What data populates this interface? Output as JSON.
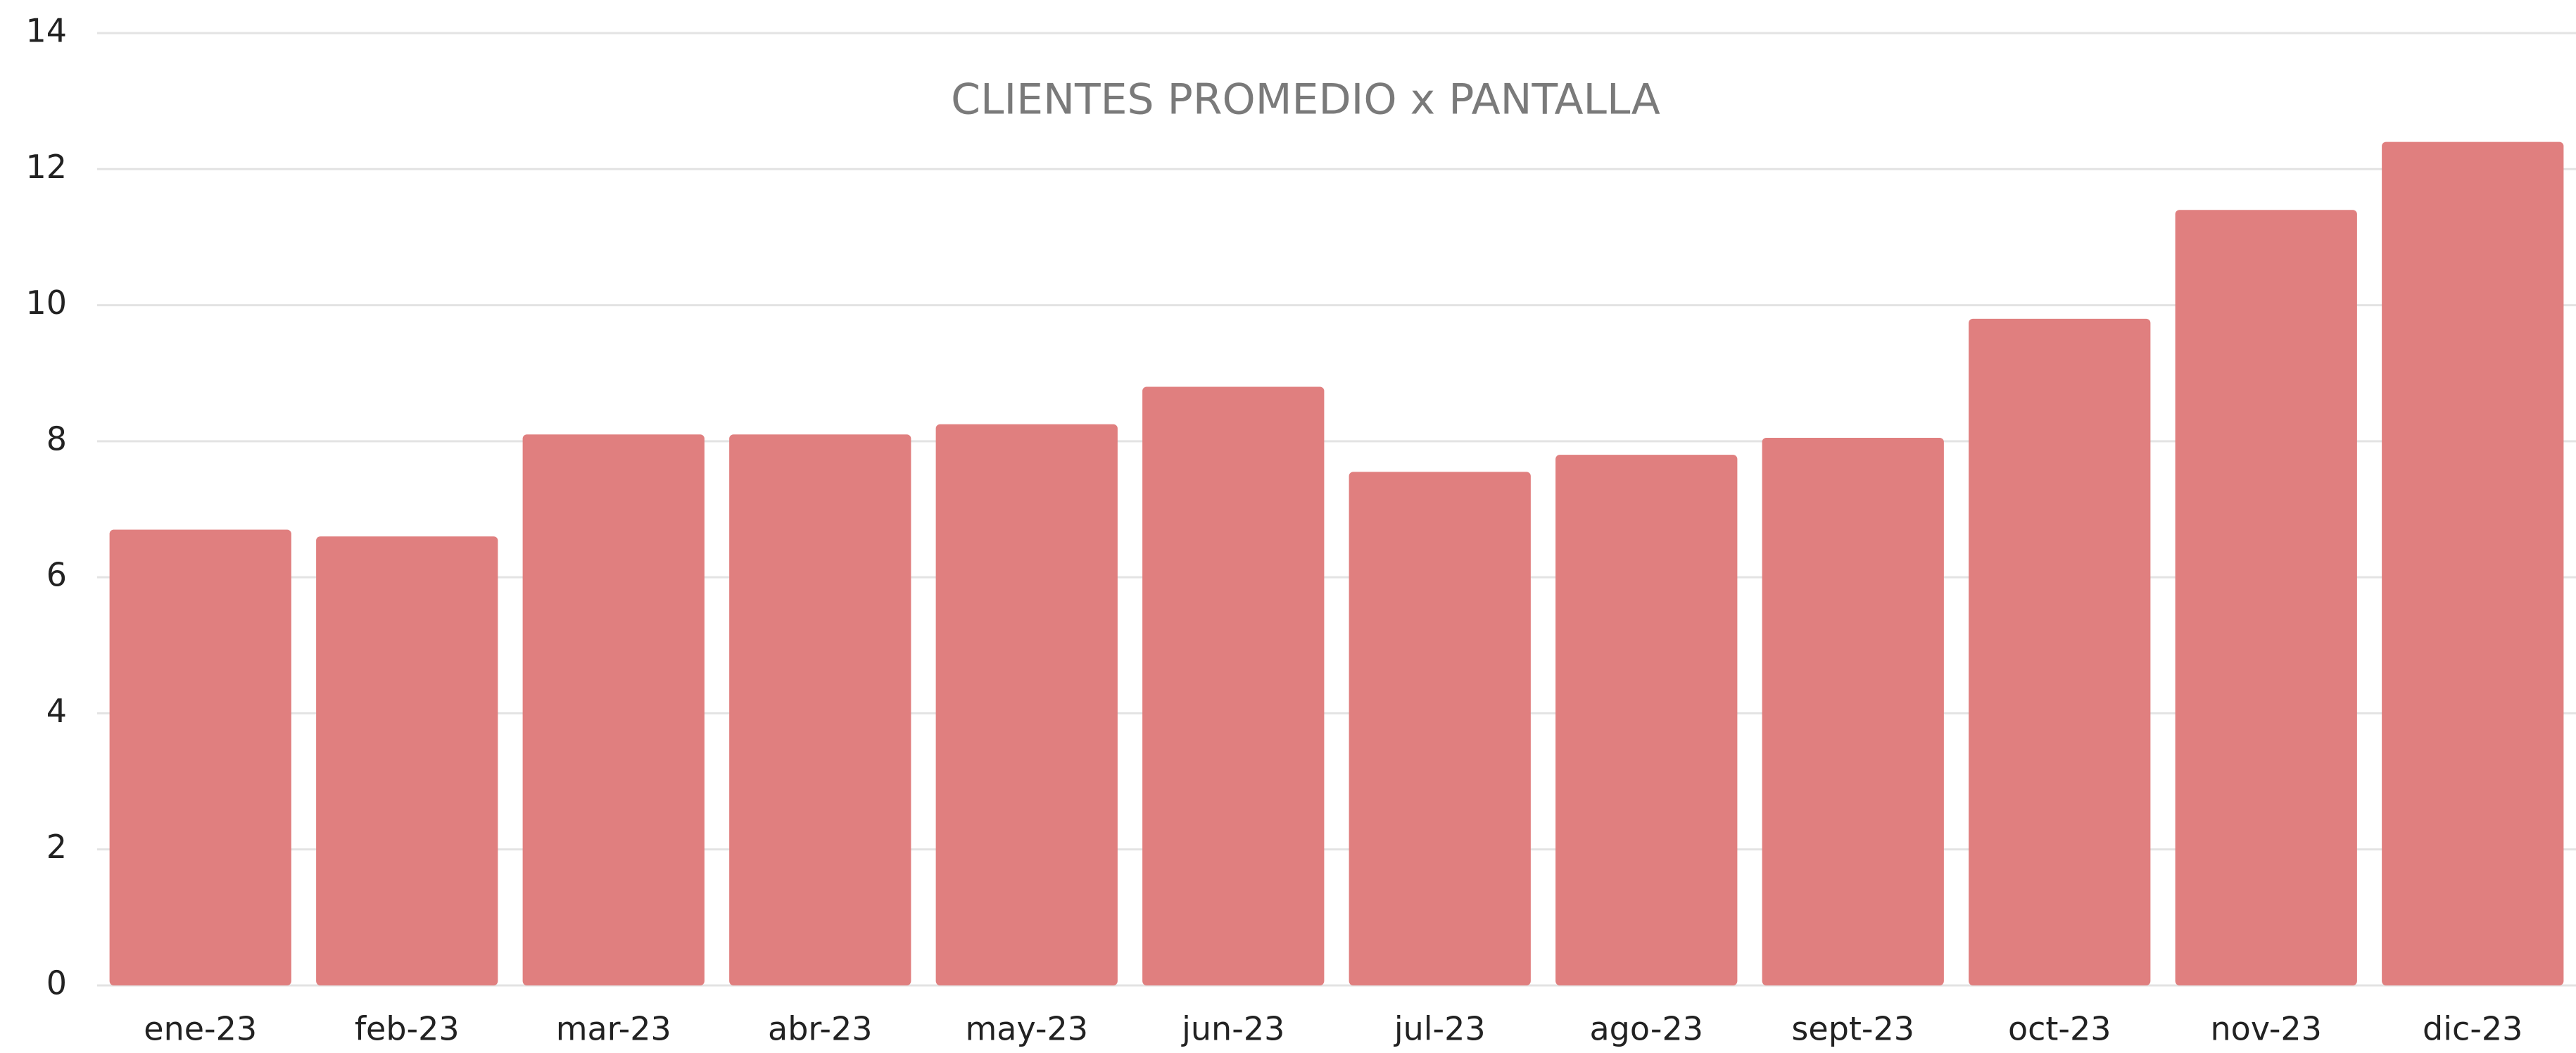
{
  "chart_data": {
    "type": "bar",
    "title": "CLIENTES PROMEDIO x PANTALLA",
    "categories": [
      "ene-23",
      "feb-23",
      "mar-23",
      "abr-23",
      "may-23",
      "jun-23",
      "jul-23",
      "ago-23",
      "sept-23",
      "oct-23",
      "nov-23",
      "dic-23"
    ],
    "values": [
      6.7,
      6.6,
      8.1,
      8.1,
      8.25,
      8.8,
      7.55,
      7.8,
      8.05,
      9.8,
      11.4,
      12.4
    ],
    "color": "#e07f7f",
    "ylim": [
      0,
      14
    ],
    "yticks": [
      0,
      2,
      4,
      6,
      8,
      10,
      12,
      14
    ],
    "grid": true
  }
}
